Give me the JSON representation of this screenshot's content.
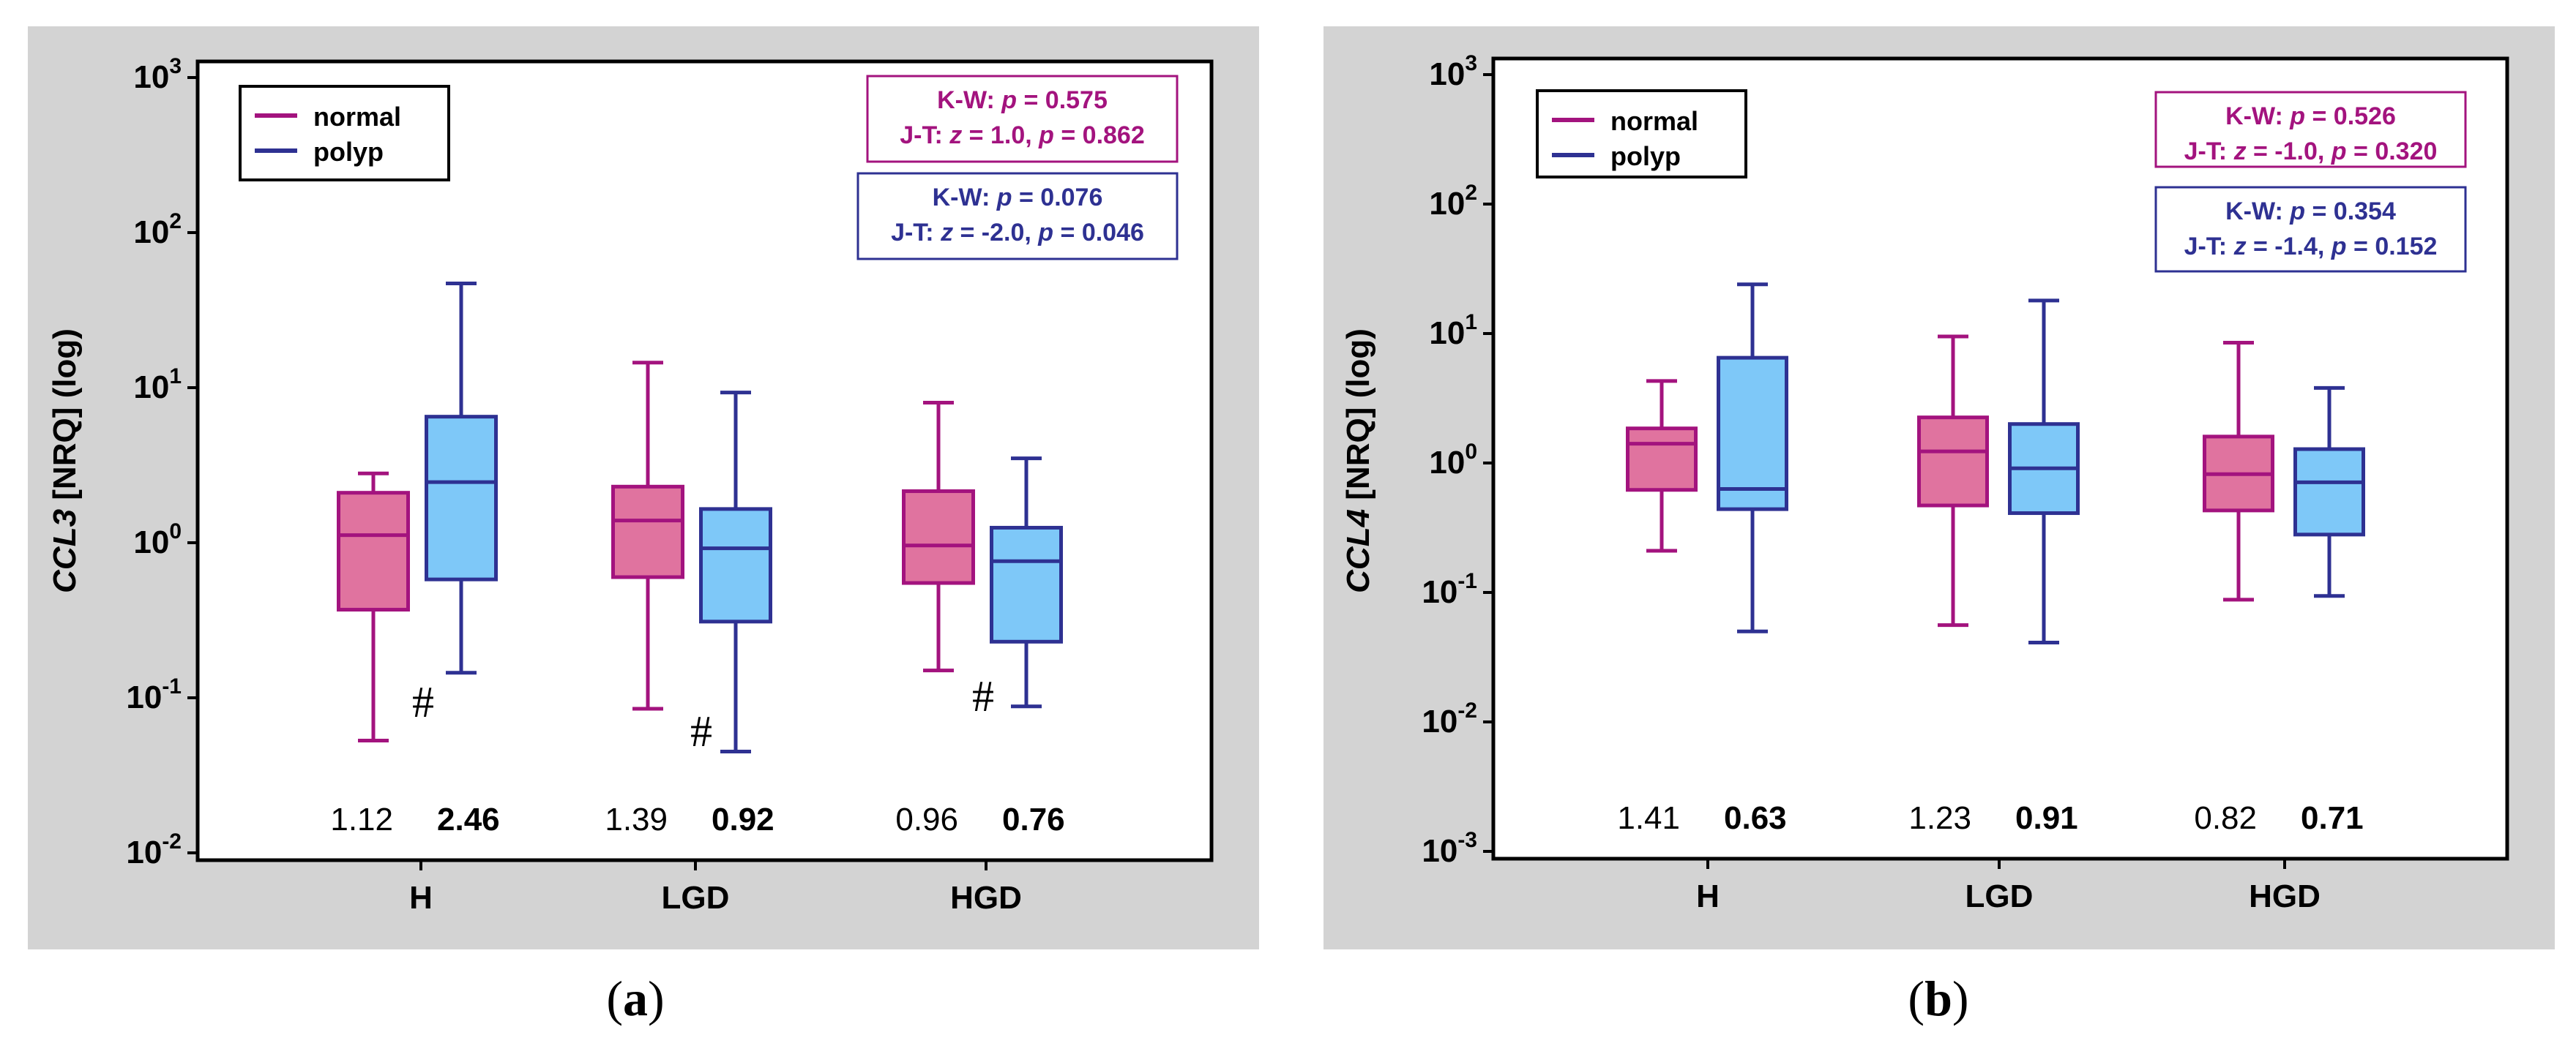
{
  "colors": {
    "normal_line": "#A3137E",
    "normal_fill": "#E0739F",
    "polyp_line": "#2E3192",
    "polyp_fill": "#7EC8F8",
    "panel_bg": "#D3D3D3",
    "plot_bg": "#FFFFFF"
  },
  "chart_data": [
    {
      "type": "boxplot",
      "panel_label": "(a)",
      "panel_label_letter": "a",
      "ylabel_gene": "CCL3",
      "ylabel_rest": " [NRQ] (log)",
      "yscale": "log",
      "ylim": [
        0.01,
        1000
      ],
      "yticks": [
        {
          "base": "10",
          "exp": "3"
        },
        {
          "base": "10",
          "exp": "2"
        },
        {
          "base": "10",
          "exp": "1"
        },
        {
          "base": "10",
          "exp": "0"
        },
        {
          "base": "10",
          "exp": "-1"
        },
        {
          "base": "10",
          "exp": "-2"
        }
      ],
      "categories": [
        "H",
        "LGD",
        "HGD"
      ],
      "legend": {
        "normal": "normal",
        "polyp": "polyp"
      },
      "series": [
        {
          "name": "normal",
          "boxes": [
            {
              "min": 0.053,
              "q1": 0.37,
              "median": 1.12,
              "q3": 2.1,
              "max": 2.8
            },
            {
              "min": 0.085,
              "q1": 0.6,
              "median": 1.39,
              "q3": 2.3,
              "max": 14.5
            },
            {
              "min": 0.15,
              "q1": 0.55,
              "median": 0.96,
              "q3": 2.15,
              "max": 8.0
            }
          ]
        },
        {
          "name": "polyp",
          "boxes": [
            {
              "min": 0.145,
              "q1": 0.58,
              "median": 2.46,
              "q3": 6.5,
              "max": 47
            },
            {
              "min": 0.045,
              "q1": 0.31,
              "median": 0.92,
              "q3": 1.65,
              "max": 9.3
            },
            {
              "min": 0.088,
              "q1": 0.23,
              "median": 0.76,
              "q3": 1.25,
              "max": 3.5
            }
          ]
        }
      ],
      "medians_text": [
        {
          "normal": "1.12",
          "polyp": "2.46"
        },
        {
          "normal": "1.39",
          "polyp": "0.92"
        },
        {
          "normal": "0.96",
          "polyp": "0.76"
        }
      ],
      "hash_mark": "#",
      "stats": {
        "normal": {
          "kw_label": "K-W: ",
          "kw_p": "p",
          "kw_val": " = 0.575",
          "jt_label": "J-T: ",
          "jt_z": "z",
          "jt_zval": " = 1.0, ",
          "jt_p": "p",
          "jt_pval": " = 0.862"
        },
        "polyp": {
          "kw_label": "K-W: ",
          "kw_p": "p",
          "kw_val": " = 0.076",
          "jt_label": "J-T: ",
          "jt_z": "z",
          "jt_zval": " = -2.0, ",
          "jt_p": "p",
          "jt_pval": " = 0.046"
        }
      }
    },
    {
      "type": "boxplot",
      "panel_label": "(b)",
      "panel_label_letter": "b",
      "ylabel_gene": "CCL4",
      "ylabel_rest": " [NRQ] (log)",
      "yscale": "log",
      "ylim": [
        0.001,
        1000
      ],
      "yticks": [
        {
          "base": "10",
          "exp": "3"
        },
        {
          "base": "10",
          "exp": "2"
        },
        {
          "base": "10",
          "exp": "1"
        },
        {
          "base": "10",
          "exp": "0"
        },
        {
          "base": "10",
          "exp": "-1"
        },
        {
          "base": "10",
          "exp": "-2"
        },
        {
          "base": "10",
          "exp": "-3"
        }
      ],
      "categories": [
        "H",
        "LGD",
        "HGD"
      ],
      "legend": {
        "normal": "normal",
        "polyp": "polyp"
      },
      "series": [
        {
          "name": "normal",
          "boxes": [
            {
              "min": 0.21,
              "q1": 0.62,
              "median": 1.41,
              "q3": 1.85,
              "max": 4.3
            },
            {
              "min": 0.056,
              "q1": 0.47,
              "median": 1.23,
              "q3": 2.25,
              "max": 9.5
            },
            {
              "min": 0.088,
              "q1": 0.43,
              "median": 0.82,
              "q3": 1.6,
              "max": 8.5
            }
          ]
        },
        {
          "name": "polyp",
          "boxes": [
            {
              "min": 0.05,
              "q1": 0.44,
              "median": 0.63,
              "q3": 6.5,
              "max": 24
            },
            {
              "min": 0.041,
              "q1": 0.41,
              "median": 0.91,
              "q3": 2.0,
              "max": 18
            },
            {
              "min": 0.094,
              "q1": 0.28,
              "median": 0.71,
              "q3": 1.28,
              "max": 3.8
            }
          ]
        }
      ],
      "medians_text": [
        {
          "normal": "1.41",
          "polyp": "0.63"
        },
        {
          "normal": "1.23",
          "polyp": "0.91"
        },
        {
          "normal": "0.82",
          "polyp": "0.71"
        }
      ],
      "stats": {
        "normal": {
          "kw_label": "K-W: ",
          "kw_p": "p",
          "kw_val": " = 0.526",
          "jt_label": "J-T: ",
          "jt_z": "z",
          "jt_zval": " = -1.0, ",
          "jt_p": "p",
          "jt_pval": " = 0.320"
        },
        "polyp": {
          "kw_label": "K-W: ",
          "kw_p": "p",
          "kw_val": " = 0.354",
          "jt_label": "J-T: ",
          "jt_z": "z",
          "jt_zval": " = -1.4, ",
          "jt_p": "p",
          "jt_pval": " = 0.152"
        }
      }
    }
  ]
}
